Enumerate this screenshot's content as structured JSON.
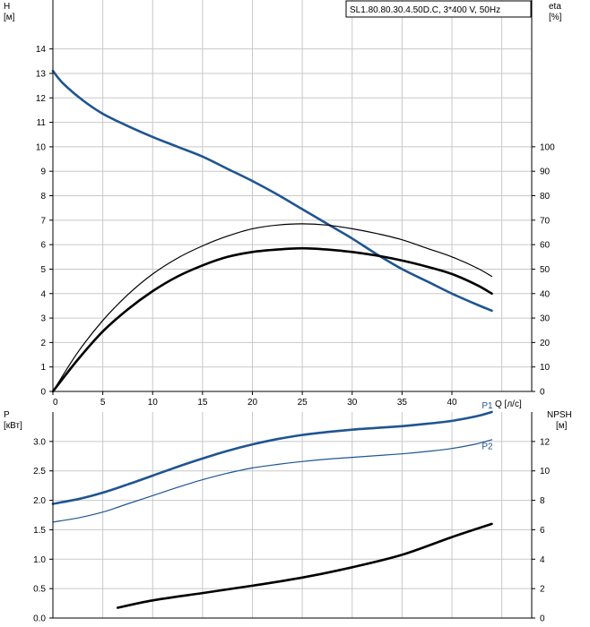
{
  "title_box": "SL1.80.80.30.4.50D.C, 3*400 V, 50Hz",
  "colors": {
    "blue": "#1f5590",
    "black": "#000000",
    "grid": "#c8c8c8"
  },
  "chart_data": [
    {
      "type": "line",
      "panel": "upper",
      "title": "SL1.80.80.30.4.50D.C, 3*400 V, 50Hz",
      "xlabel": "Q [л/с]",
      "ylabel_left": "H [м]",
      "ylabel_right": "eta [%]",
      "x_ticks": [
        0,
        5,
        10,
        15,
        20,
        25,
        30,
        35,
        40
      ],
      "x_tick_labels": [
        "0",
        "5",
        "10",
        "15",
        "20",
        "25",
        "30",
        "35",
        "40"
      ],
      "xlim": [
        0,
        48
      ],
      "ylim_left": [
        0,
        16
      ],
      "y_left_ticks": [
        0,
        1,
        2,
        3,
        4,
        5,
        6,
        7,
        8,
        9,
        10,
        11,
        12,
        13,
        14
      ],
      "y_left_tick_labels": [
        "0",
        "1",
        "2",
        "3",
        "4",
        "5",
        "6",
        "7",
        "8",
        "9",
        "10",
        "11",
        "12",
        "13",
        "14"
      ],
      "ylim_right": [
        0,
        160
      ],
      "y_right_ticks": [
        0,
        10,
        20,
        30,
        40,
        50,
        60,
        70,
        80,
        90,
        100
      ],
      "y_right_tick_labels": [
        "0",
        "10",
        "20",
        "30",
        "40",
        "50",
        "60",
        "70",
        "80",
        "90",
        "100"
      ],
      "grid": true,
      "series": [
        {
          "axis": "left",
          "color": "#1f5590",
          "width": 2.6,
          "x": [
            0,
            1,
            3,
            5,
            7.5,
            10,
            12.5,
            15,
            17.5,
            20,
            22.5,
            25,
            27.5,
            30,
            32.5,
            35,
            37.5,
            40,
            42.5,
            44
          ],
          "y": [
            13.1,
            12.6,
            11.9,
            11.35,
            10.85,
            10.4,
            10.0,
            9.6,
            9.1,
            8.6,
            8.05,
            7.45,
            6.85,
            6.25,
            5.6,
            5.0,
            4.5,
            4.0,
            3.55,
            3.3
          ]
        },
        {
          "axis": "right",
          "color": "#000000",
          "width": 1.2,
          "x": [
            0,
            2.5,
            5,
            7.5,
            10,
            12.5,
            15,
            17.5,
            20,
            22.5,
            25,
            27.5,
            30,
            32.5,
            35,
            37.5,
            40,
            42.5,
            44
          ],
          "y": [
            0,
            16,
            29,
            39.5,
            48,
            54.5,
            59.5,
            63.5,
            66.5,
            68,
            68.5,
            68,
            66.5,
            64.5,
            62,
            58.5,
            55,
            50.5,
            47
          ]
        },
        {
          "axis": "right",
          "color": "#000000",
          "width": 2.6,
          "x": [
            0,
            2.5,
            5,
            7.5,
            10,
            12.5,
            15,
            17.5,
            20,
            22.5,
            25,
            27.5,
            30,
            32.5,
            35,
            37.5,
            40,
            42.5,
            44
          ],
          "y": [
            0,
            13,
            24.5,
            33.5,
            41,
            47,
            51.5,
            55,
            57,
            58,
            58.5,
            58,
            57,
            55.5,
            53.5,
            51,
            48,
            43.5,
            40
          ]
        }
      ]
    },
    {
      "type": "line",
      "panel": "lower",
      "ylabel_left": "P [кВт]",
      "ylabel_right": "NPSH [м]",
      "xlim": [
        0,
        48
      ],
      "ylim_left": [
        0,
        3.5
      ],
      "y_left_ticks": [
        0,
        0.5,
        1.0,
        1.5,
        2.0,
        2.5,
        3.0
      ],
      "y_left_tick_labels": [
        "0.0",
        "0.5",
        "1.0",
        "1.5",
        "2.0",
        "2.5",
        "3.0"
      ],
      "ylim_right": [
        0,
        14
      ],
      "y_right_ticks": [
        0,
        2,
        4,
        6,
        8,
        10,
        12
      ],
      "y_right_tick_labels": [
        "0",
        "2",
        "4",
        "6",
        "8",
        "10",
        "12"
      ],
      "grid": true,
      "series": [
        {
          "name": "P1",
          "axis": "left",
          "color": "#1f5590",
          "width": 2.6,
          "x": [
            0,
            2.5,
            5,
            7.5,
            10,
            12.5,
            15,
            17.5,
            20,
            22.5,
            25,
            27.5,
            30,
            32.5,
            35,
            37.5,
            40,
            42.5,
            44
          ],
          "y": [
            1.94,
            2.02,
            2.13,
            2.27,
            2.42,
            2.57,
            2.71,
            2.84,
            2.95,
            3.04,
            3.11,
            3.16,
            3.2,
            3.23,
            3.26,
            3.3,
            3.35,
            3.43,
            3.5
          ]
        },
        {
          "name": "P2",
          "axis": "left",
          "color": "#1f5590",
          "width": 1.2,
          "x": [
            0,
            2.5,
            5,
            7.5,
            10,
            12.5,
            15,
            17.5,
            20,
            22.5,
            25,
            27.5,
            30,
            32.5,
            35,
            37.5,
            40,
            42.5,
            44
          ],
          "y": [
            1.63,
            1.7,
            1.8,
            1.94,
            2.08,
            2.22,
            2.35,
            2.46,
            2.55,
            2.61,
            2.66,
            2.7,
            2.73,
            2.76,
            2.79,
            2.83,
            2.88,
            2.96,
            3.03
          ]
        },
        {
          "axis": "right",
          "color": "#000000",
          "width": 2.6,
          "x": [
            6.5,
            10,
            15,
            20,
            25,
            30,
            35,
            40,
            44
          ],
          "y": [
            0.7,
            1.2,
            1.7,
            2.2,
            2.75,
            3.45,
            4.3,
            5.5,
            6.4
          ]
        }
      ],
      "series_labels": [
        {
          "text": "P1",
          "x": 43,
          "y": 3.56
        },
        {
          "text": "P2",
          "x": 43,
          "y": 2.87
        }
      ]
    }
  ]
}
